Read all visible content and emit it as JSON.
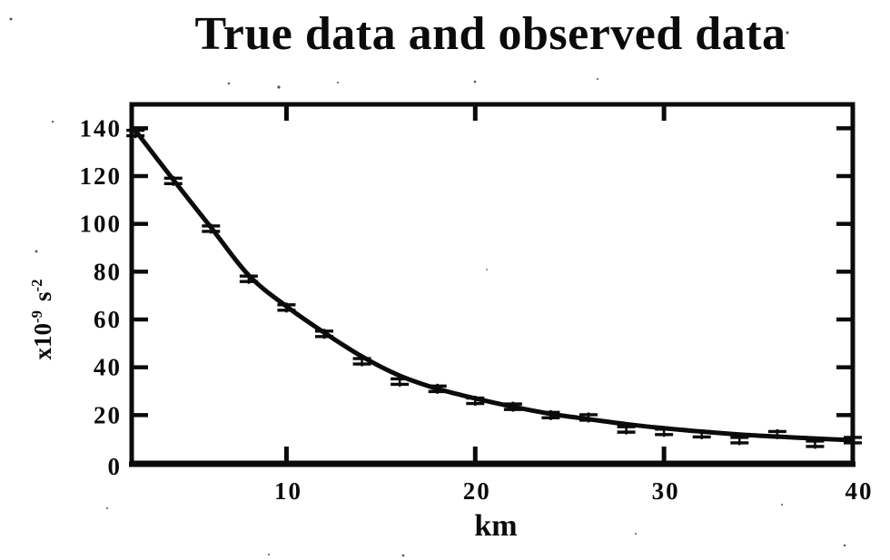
{
  "title": "True data and observed data",
  "x_axis": {
    "label": "km",
    "tick_labels": [
      "10",
      "20",
      "30",
      "40"
    ],
    "tick_values": [
      10,
      20,
      30,
      40
    ]
  },
  "y_axis": {
    "unit": {
      "base1": "x10",
      "sup1": "-9",
      "base2": "s",
      "sup2": "-2"
    },
    "tick_labels": [
      "0",
      "20",
      "40",
      "60",
      "80",
      "100",
      "120",
      "140"
    ],
    "tick_values": [
      0,
      20,
      40,
      60,
      80,
      100,
      120,
      140
    ]
  },
  "chart_data": {
    "type": "line",
    "title": "True data and observed data",
    "xlabel": "km",
    "ylabel": "x10^-9 s^-2",
    "x": [
      2,
      4,
      6,
      8,
      10,
      12,
      14,
      16,
      18,
      20,
      22,
      24,
      26,
      28,
      30,
      32,
      34,
      36,
      38,
      40
    ],
    "series": [
      {
        "name": "true data",
        "style": "smooth thick solid curve",
        "values": [
          139,
          118.5,
          98.5,
          78.5,
          65.5,
          54.5,
          44.5,
          36.5,
          31,
          27,
          23.5,
          20.5,
          18.3,
          16.2,
          14.5,
          13.1,
          11.9,
          11,
          10.2,
          9.5
        ]
      },
      {
        "name": "observed data",
        "style": "error-bar markers",
        "values": [
          138,
          118,
          98,
          77,
          65,
          54,
          42.5,
          34,
          31,
          26,
          23.5,
          20,
          19,
          14,
          13,
          12,
          9.5,
          12,
          8,
          9.5
        ]
      }
    ],
    "xlim": [
      1.8,
      40
    ],
    "ylim": [
      0,
      150
    ],
    "x_ticks": [
      10,
      20,
      30,
      40
    ],
    "y_ticks": [
      0,
      20,
      40,
      60,
      80,
      100,
      120,
      140
    ],
    "grid": false,
    "legend_position": "none",
    "colors": {
      "ink": "#0b0b0b",
      "background": "#ffffff"
    }
  }
}
